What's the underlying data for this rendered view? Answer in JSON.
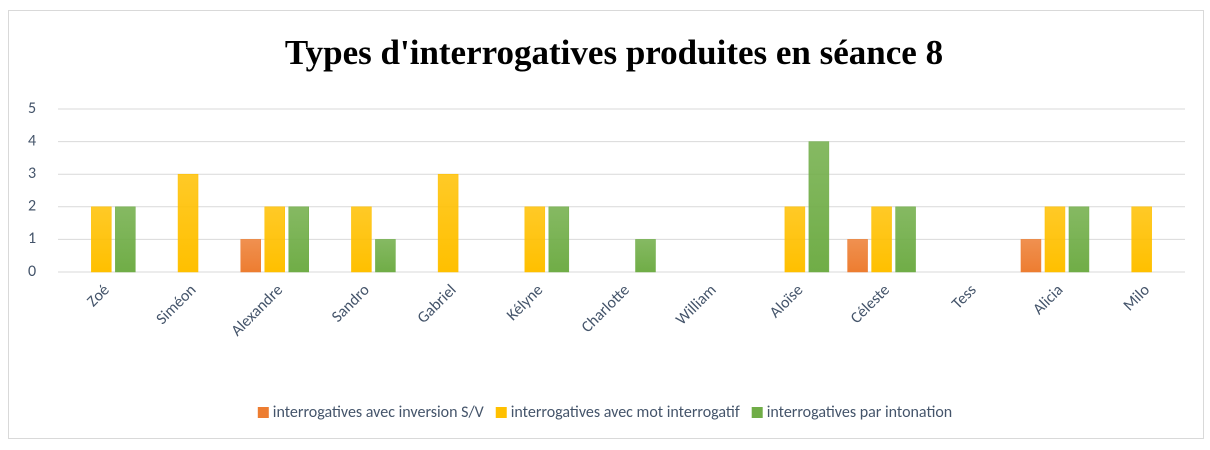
{
  "chart_data": {
    "type": "bar",
    "title": "Types d'interrogatives produites en séance 8",
    "categories": [
      "Zoé",
      "Siméon",
      "Alexandre",
      "Sandro",
      "Gabriel",
      "Kélyne",
      "Charlotte",
      "William",
      "Aloïse",
      "Céleste",
      "Tess",
      "Alicia",
      "Milo"
    ],
    "series": [
      {
        "name": "interrogatives avec inversion S/V",
        "color": "#ed7d31",
        "values": [
          0,
          0,
          1,
          0,
          0,
          0,
          0,
          0,
          0,
          1,
          0,
          1,
          0
        ]
      },
      {
        "name": "interrogatives avec mot interrogatif",
        "color": "#ffc000",
        "values": [
          2,
          3,
          2,
          2,
          3,
          2,
          0,
          0,
          2,
          2,
          0,
          2,
          2
        ]
      },
      {
        "name": "interrogatives par intonation",
        "color": "#70ad47",
        "values": [
          2,
          0,
          2,
          1,
          0,
          2,
          1,
          0,
          4,
          2,
          0,
          2,
          0
        ]
      }
    ],
    "ylim": [
      0,
      5
    ],
    "yticks": [
      0,
      1,
      2,
      3,
      4,
      5
    ],
    "grid": true,
    "legend": "bottom"
  }
}
